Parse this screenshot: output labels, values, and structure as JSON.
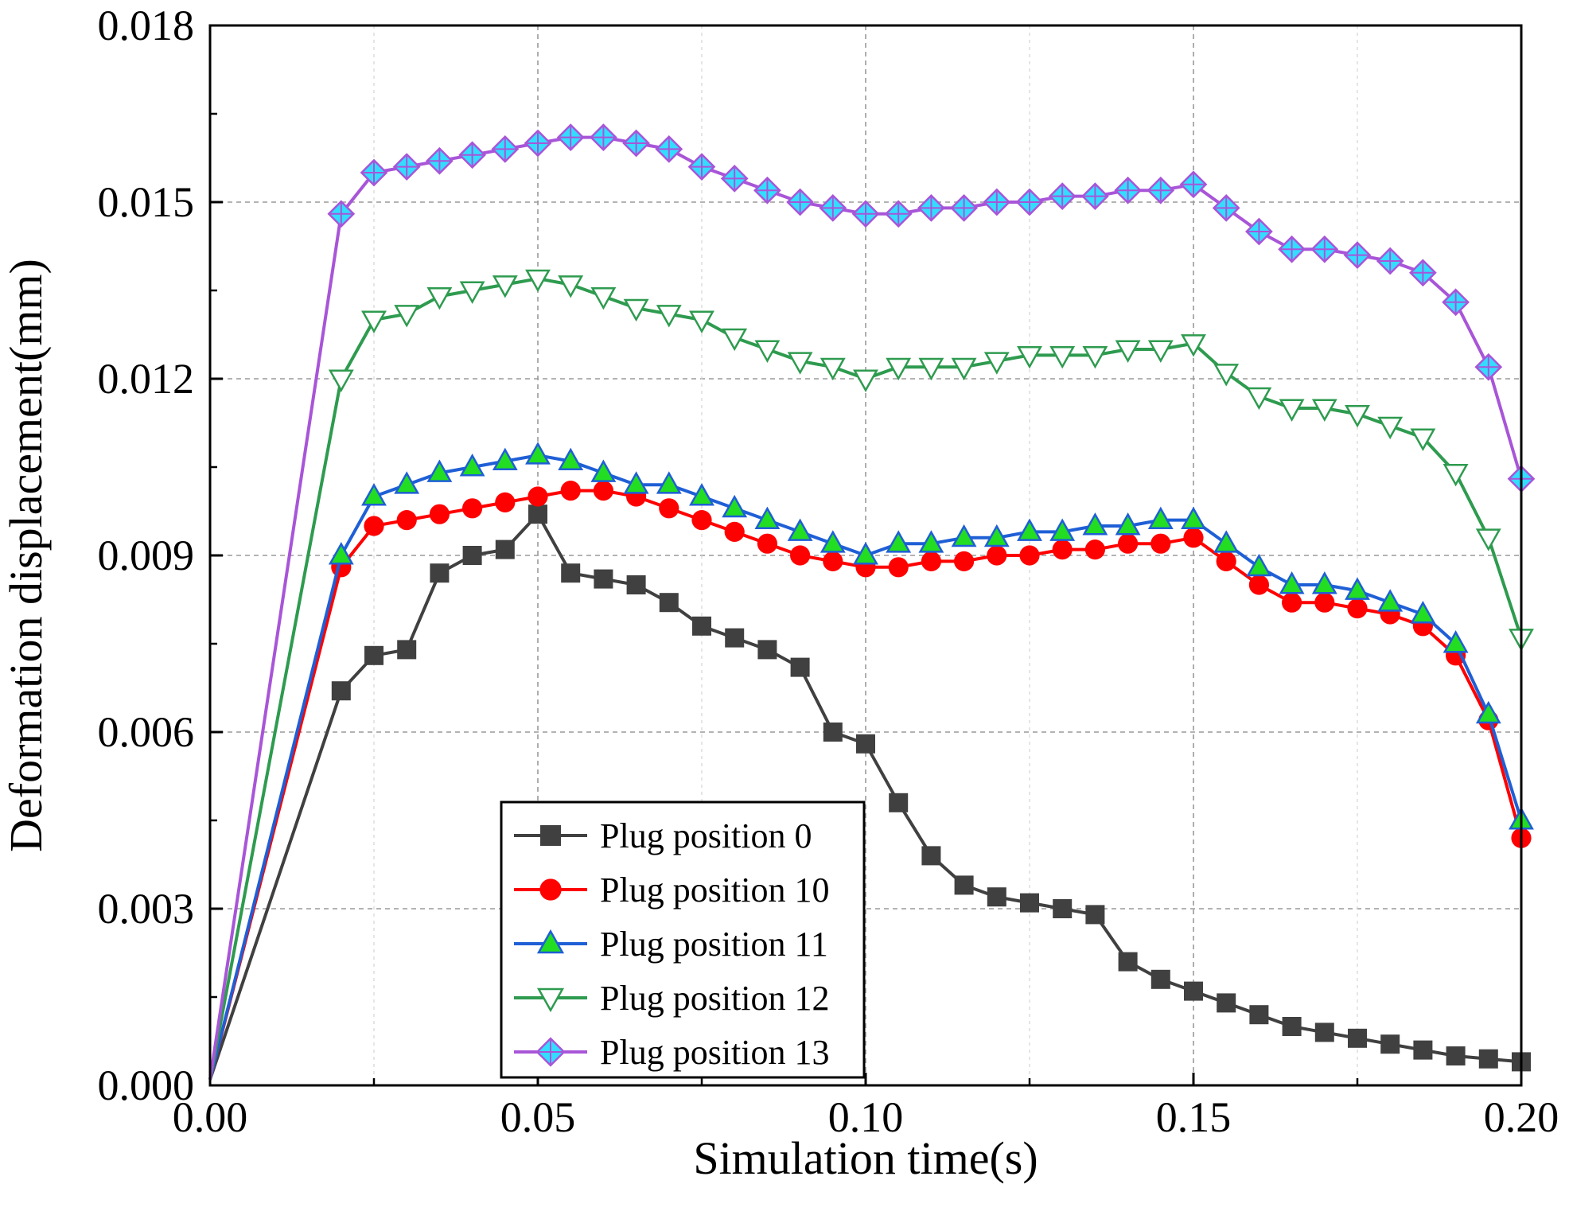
{
  "chart_data": {
    "type": "line",
    "title": "",
    "xlabel": "Simulation time(s)",
    "ylabel": "Deformation displacement(mm)",
    "xlim": [
      0,
      0.2
    ],
    "ylim": [
      0,
      0.018
    ],
    "x_ticks": [
      "0.00",
      "0.05",
      "0.10",
      "0.15",
      "0.20"
    ],
    "y_ticks": [
      "0.000",
      "0.003",
      "0.006",
      "0.009",
      "0.012",
      "0.015",
      "0.018"
    ],
    "grid": true,
    "legend_position": "bottom-center",
    "x": [
      0,
      0.02,
      0.025,
      0.03,
      0.035,
      0.04,
      0.045,
      0.05,
      0.055,
      0.06,
      0.065,
      0.07,
      0.075,
      0.08,
      0.085,
      0.09,
      0.095,
      0.1,
      0.105,
      0.11,
      0.115,
      0.12,
      0.125,
      0.13,
      0.135,
      0.14,
      0.145,
      0.15,
      0.155,
      0.16,
      0.165,
      0.17,
      0.175,
      0.18,
      0.185,
      0.19,
      0.195,
      0.2
    ],
    "series": [
      {
        "name": "Plug position 0",
        "color": "#404040",
        "marker": "square",
        "values": [
          0.0001,
          0.0067,
          0.0073,
          0.0074,
          0.0087,
          0.009,
          0.0091,
          0.0097,
          0.0087,
          0.0086,
          0.0085,
          0.0082,
          0.0078,
          0.0076,
          0.0074,
          0.0071,
          0.006,
          0.0058,
          0.0048,
          0.0039,
          0.0034,
          0.0032,
          0.0031,
          0.003,
          0.0029,
          0.0021,
          0.0018,
          0.0016,
          0.0014,
          0.0012,
          0.001,
          0.0009,
          0.0008,
          0.0007,
          0.0006,
          0.0005,
          0.00045,
          0.0004
        ]
      },
      {
        "name": "Plug position 10",
        "color": "#ff0000",
        "marker": "circle",
        "values": [
          0.0001,
          0.0088,
          0.0095,
          0.0096,
          0.0097,
          0.0098,
          0.0099,
          0.01,
          0.0101,
          0.0101,
          0.01,
          0.0098,
          0.0096,
          0.0094,
          0.0092,
          0.009,
          0.0089,
          0.0088,
          0.0088,
          0.0089,
          0.0089,
          0.009,
          0.009,
          0.0091,
          0.0091,
          0.0092,
          0.0092,
          0.0093,
          0.0089,
          0.0085,
          0.0082,
          0.0082,
          0.0081,
          0.008,
          0.0078,
          0.0073,
          0.0062,
          0.0042
        ]
      },
      {
        "name": "Plug position 11",
        "color": "#1f5fd6",
        "marker": "triangle-up",
        "values": [
          0.0001,
          0.009,
          0.01,
          0.0102,
          0.0104,
          0.0105,
          0.0106,
          0.0107,
          0.0106,
          0.0104,
          0.0102,
          0.0102,
          0.01,
          0.0098,
          0.0096,
          0.0094,
          0.0092,
          0.009,
          0.0092,
          0.0092,
          0.0093,
          0.0093,
          0.0094,
          0.0094,
          0.0095,
          0.0095,
          0.0096,
          0.0096,
          0.0092,
          0.0088,
          0.0085,
          0.0085,
          0.0084,
          0.0082,
          0.008,
          0.0075,
          0.0063,
          0.0045
        ]
      },
      {
        "name": "Plug position 12",
        "color": "#2e9b4f",
        "marker": "triangle-down",
        "values": [
          0.0001,
          0.012,
          0.013,
          0.0131,
          0.0134,
          0.0135,
          0.0136,
          0.0137,
          0.0136,
          0.0134,
          0.0132,
          0.0131,
          0.013,
          0.0127,
          0.0125,
          0.0123,
          0.0122,
          0.012,
          0.0122,
          0.0122,
          0.0122,
          0.0123,
          0.0124,
          0.0124,
          0.0124,
          0.0125,
          0.0125,
          0.0126,
          0.0121,
          0.0117,
          0.0115,
          0.0115,
          0.0114,
          0.0112,
          0.011,
          0.0104,
          0.0093,
          0.0076
        ]
      },
      {
        "name": "Plug position 13",
        "color": "#a855d8",
        "marker": "diamond",
        "values": [
          0.0001,
          0.0148,
          0.0155,
          0.0156,
          0.0157,
          0.0158,
          0.0159,
          0.016,
          0.0161,
          0.0161,
          0.016,
          0.0159,
          0.0156,
          0.0154,
          0.0152,
          0.015,
          0.0149,
          0.0148,
          0.0148,
          0.0149,
          0.0149,
          0.015,
          0.015,
          0.0151,
          0.0151,
          0.0152,
          0.0152,
          0.0153,
          0.0149,
          0.0145,
          0.0142,
          0.0142,
          0.0141,
          0.014,
          0.0138,
          0.0133,
          0.0122,
          0.0103
        ]
      }
    ]
  }
}
